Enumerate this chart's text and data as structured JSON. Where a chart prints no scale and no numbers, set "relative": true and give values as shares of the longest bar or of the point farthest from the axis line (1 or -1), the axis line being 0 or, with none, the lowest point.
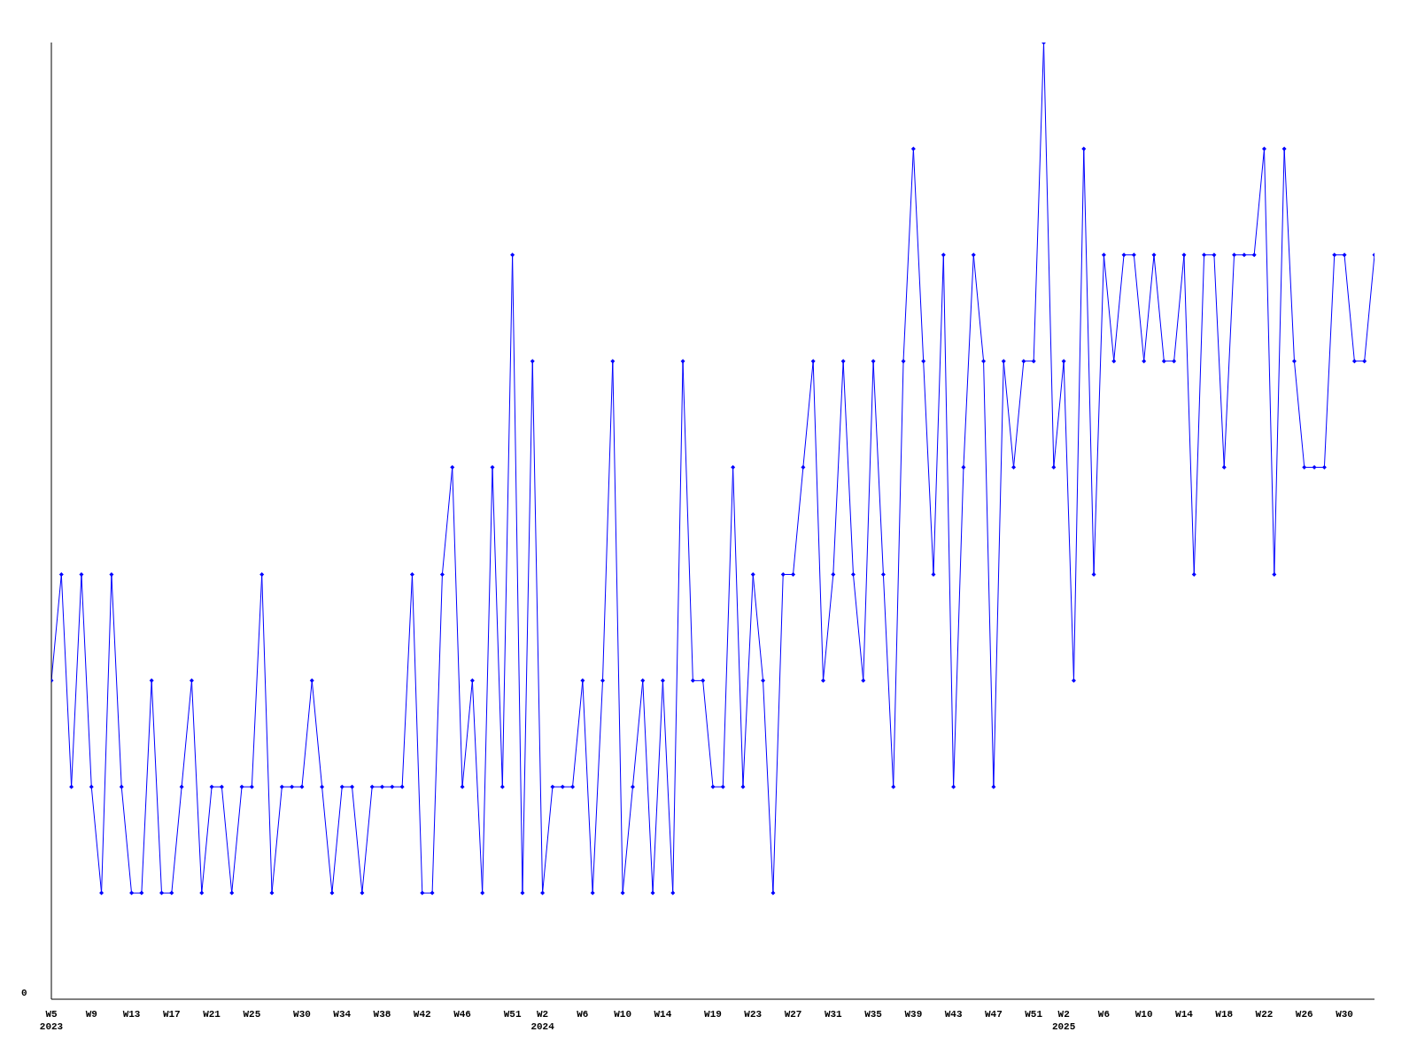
{
  "chart_data": {
    "type": "line",
    "relative": true,
    "marker": "diamond",
    "grid": false,
    "legend": false,
    "annotations": [
      "0"
    ],
    "categories": [
      "W5\n2023",
      null,
      null,
      null,
      "W9",
      null,
      null,
      null,
      "W13",
      null,
      null,
      null,
      "W17",
      null,
      null,
      null,
      "W21",
      null,
      null,
      null,
      "W25",
      null,
      null,
      null,
      null,
      "W30",
      null,
      null,
      null,
      "W34",
      null,
      null,
      null,
      "W38",
      null,
      null,
      null,
      "W42",
      null,
      null,
      null,
      "W46",
      null,
      null,
      null,
      null,
      "W51",
      null,
      null,
      "W2\n2024",
      null,
      null,
      null,
      "W6",
      null,
      null,
      null,
      "W10",
      null,
      null,
      null,
      "W14",
      null,
      null,
      null,
      null,
      "W19",
      null,
      null,
      null,
      "W23",
      null,
      null,
      null,
      "W27",
      null,
      null,
      null,
      "W31",
      null,
      null,
      null,
      "W35",
      null,
      null,
      null,
      "W39",
      null,
      null,
      null,
      "W43",
      null,
      null,
      null,
      "W47",
      null,
      null,
      null,
      "W51",
      null,
      null,
      "W2\n2025",
      null,
      null,
      null,
      "W6",
      null,
      null,
      null,
      "W10",
      null,
      null,
      null,
      "W14",
      null,
      null,
      null,
      "W18",
      null,
      null,
      null,
      "W22",
      null,
      null,
      null,
      "W26",
      null,
      null,
      null,
      "W30",
      null,
      null,
      null
    ],
    "series": [
      {
        "color": "#0000ff",
        "values": [
          0.333,
          0.444,
          0.222,
          0.444,
          0.222,
          0.111,
          0.444,
          0.222,
          0.111,
          0.111,
          0.333,
          0.111,
          0.111,
          0.222,
          0.333,
          0.111,
          0.222,
          0.222,
          0.111,
          0.222,
          0.222,
          0.444,
          0.111,
          0.222,
          0.222,
          0.222,
          0.333,
          0.222,
          0.111,
          0.222,
          0.222,
          0.111,
          0.222,
          0.222,
          0.222,
          0.222,
          0.444,
          0.111,
          0.111,
          0.444,
          0.556,
          0.222,
          0.333,
          0.111,
          0.556,
          0.222,
          0.778,
          0.111,
          0.667,
          0.111,
          0.222,
          0.222,
          0.222,
          0.333,
          0.111,
          0.333,
          0.667,
          0.111,
          0.222,
          0.333,
          0.111,
          0.333,
          0.111,
          0.667,
          0.333,
          0.333,
          0.222,
          0.222,
          0.556,
          0.222,
          0.444,
          0.333,
          0.111,
          0.444,
          0.444,
          0.556,
          0.667,
          0.333,
          0.444,
          0.667,
          0.444,
          0.333,
          0.667,
          0.444,
          0.222,
          0.667,
          0.889,
          0.667,
          0.444,
          0.778,
          0.222,
          0.556,
          0.778,
          0.667,
          0.222,
          0.667,
          0.556,
          0.667,
          0.667,
          1,
          0.556,
          0.667,
          0.333,
          0.889,
          0.444,
          0.778,
          0.667,
          0.778,
          0.778,
          0.667,
          0.778,
          0.667,
          0.667,
          0.778,
          0.444,
          0.778,
          0.778,
          0.556,
          0.778,
          0.778,
          0.778,
          0.889,
          0.444,
          0.889,
          0.667,
          0.556,
          0.556,
          0.556,
          0.778,
          0.778,
          0.667,
          0.667,
          0.778
        ]
      }
    ]
  }
}
